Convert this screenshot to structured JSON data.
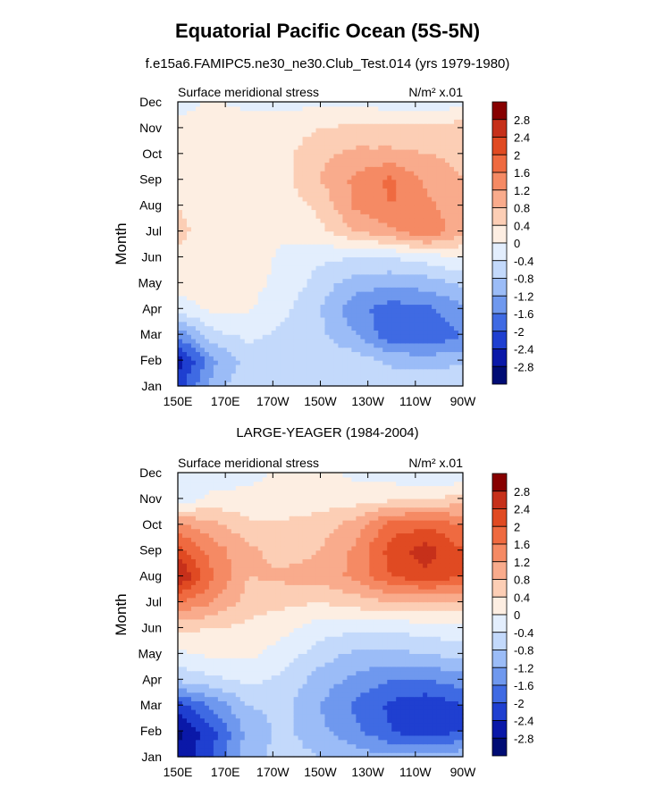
{
  "figure": {
    "title": "Equatorial Pacific Ocean (5S-5N)",
    "subtitle": "f.e15a6.FAMIPC5.ne30_ne30.Club_Test.014 (yrs 1979-1980)",
    "bottom_title": "LARGE-YEAGER (1984-2004)"
  },
  "chart_data": [
    {
      "type": "heatmap",
      "name": "model",
      "left_label": "Surface meridional stress",
      "units_label": "N/m² x.01",
      "ylabel": "Month",
      "x_ticks": [
        "150E",
        "170E",
        "170W",
        "150W",
        "130W",
        "110W",
        "90W"
      ],
      "y_ticks": [
        "Jan",
        "Feb",
        "Mar",
        "Apr",
        "May",
        "Jun",
        "Jul",
        "Aug",
        "Sep",
        "Oct",
        "Nov",
        "Dec"
      ],
      "values": [
        [
          -2.2,
          -1.0,
          -0.5,
          -0.5,
          -0.4,
          -0.4,
          -0.5,
          -0.4,
          -0.4
        ],
        [
          -2.6,
          -1.3,
          -0.6,
          -0.6,
          -0.5,
          -0.6,
          -0.9,
          -1.0,
          -0.9
        ],
        [
          -1.5,
          -0.5,
          -0.3,
          -0.5,
          -0.7,
          -1.2,
          -1.9,
          -2.0,
          -1.6
        ],
        [
          -0.2,
          0.1,
          0.05,
          -0.3,
          -0.8,
          -1.5,
          -1.8,
          -1.7,
          -1.3
        ],
        [
          0.2,
          0.2,
          0.1,
          -0.1,
          -0.6,
          -1.0,
          -1.1,
          -1.0,
          -0.7
        ],
        [
          0.3,
          0.3,
          0.2,
          -0.1,
          -0.3,
          -0.4,
          -0.4,
          -0.2,
          0.0
        ],
        [
          0.5,
          0.2,
          0.2,
          0.1,
          0.3,
          0.8,
          1.1,
          1.6,
          0.9
        ],
        [
          0.4,
          0.2,
          0.2,
          0.2,
          0.5,
          1.3,
          1.6,
          1.3,
          0.9
        ],
        [
          0.2,
          0.2,
          0.2,
          0.3,
          0.8,
          1.3,
          1.7,
          1.1,
          0.8
        ],
        [
          0.2,
          0.2,
          0.2,
          0.3,
          0.7,
          0.9,
          0.9,
          0.8,
          0.7
        ],
        [
          0.1,
          0.1,
          0.2,
          0.2,
          0.4,
          0.5,
          0.5,
          0.5,
          0.6
        ],
        [
          -0.1,
          0.05,
          -0.1,
          -0.1,
          -0.1,
          -0.1,
          -0.2,
          -0.3,
          -0.1
        ]
      ]
    },
    {
      "type": "heatmap",
      "name": "observations",
      "left_label": "Surface meridional stress",
      "units_label": "N/m² x.01",
      "ylabel": "Month",
      "x_ticks": [
        "150E",
        "170E",
        "170W",
        "150W",
        "130W",
        "110W",
        "90W"
      ],
      "y_ticks": [
        "Jan",
        "Feb",
        "Mar",
        "Apr",
        "May",
        "Jun",
        "Jul",
        "Aug",
        "Sep",
        "Oct",
        "Nov",
        "Dec"
      ],
      "values": [
        [
          -2.7,
          -2.0,
          -1.0,
          -0.6,
          -0.8,
          -1.0,
          -1.1,
          -1.0,
          -0.9
        ],
        [
          -2.9,
          -2.1,
          -1.0,
          -0.7,
          -1.1,
          -1.5,
          -2.0,
          -2.3,
          -2.0
        ],
        [
          -2.2,
          -1.5,
          -0.8,
          -0.7,
          -1.2,
          -1.7,
          -2.1,
          -2.3,
          -2.0
        ],
        [
          -0.7,
          -0.5,
          -0.3,
          -0.5,
          -1.0,
          -1.3,
          -1.6,
          -1.6,
          -1.4
        ],
        [
          -0.1,
          0.1,
          0.1,
          -0.2,
          -0.6,
          -0.9,
          -0.9,
          -0.8,
          -0.6
        ],
        [
          0.5,
          0.4,
          0.3,
          0.1,
          -0.2,
          -0.3,
          -0.3,
          -0.2,
          -0.1
        ],
        [
          1.6,
          1.2,
          0.6,
          0.5,
          0.4,
          0.6,
          0.8,
          0.7,
          0.7
        ],
        [
          2.9,
          1.6,
          0.8,
          0.9,
          1.0,
          1.3,
          2.0,
          2.3,
          2.0
        ],
        [
          2.2,
          1.4,
          0.9,
          0.6,
          0.8,
          1.3,
          2.2,
          2.6,
          2.0
        ],
        [
          1.3,
          0.9,
          0.5,
          0.5,
          0.6,
          1.0,
          1.8,
          1.9,
          1.6
        ],
        [
          -0.3,
          0.1,
          0.1,
          0.05,
          0.2,
          0.2,
          0.3,
          0.3,
          0.6
        ],
        [
          -0.4,
          -0.2,
          -0.1,
          0.1,
          0.1,
          -0.1,
          -0.2,
          -0.3,
          -0.4
        ]
      ]
    }
  ],
  "colorbar": {
    "labels": [
      "2.8",
      "2.4",
      "2",
      "1.6",
      "1.2",
      "0.8",
      "0.4",
      "0",
      "-0.4",
      "-0.8",
      "-1.2",
      "-1.6",
      "-2",
      "-2.4",
      "-2.8"
    ],
    "levels": [
      2.8,
      2.4,
      2,
      1.6,
      1.2,
      0.8,
      0.4,
      0,
      -0.4,
      -0.8,
      -1.2,
      -1.6,
      -2,
      -2.4,
      -2.8
    ],
    "colors": [
      "#870000",
      "#c6301a",
      "#e04a22",
      "#ef6a40",
      "#f58a64",
      "#f9ab8c",
      "#fcceb5",
      "#fdeee2",
      "#e3eefd",
      "#c3d9fb",
      "#9bbcf7",
      "#6f98ee",
      "#3f6ae3",
      "#1f3fd0",
      "#0a18a8",
      "#000c74"
    ]
  }
}
